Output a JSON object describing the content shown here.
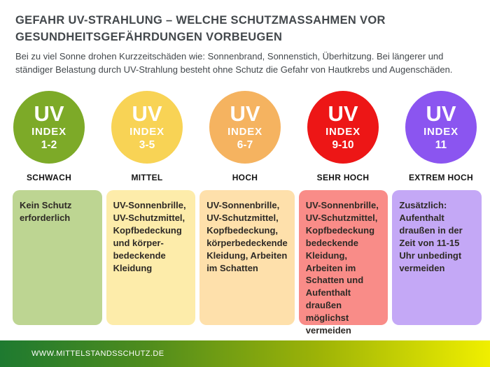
{
  "header": {
    "title_line1": "GEFAHR UV-STRAHLUNG – WELCHE SCHUTZMASSAHMEN VOR",
    "title_line2": "GESUNDHEITSGEFÄHRDUNGEN VORBEUGEN",
    "subtitle": "Bei zu viel Sonne drohen Kurzzeitschäden wie: Sonnenbrand, Sonnenstich, Überhitzung. Bei längerer und ständiger Belastung durch UV-Strahlung besteht ohne Schutz die Gefahr von Hautkrebs und Augenschäden."
  },
  "uv_levels": [
    {
      "uv_label": "UV",
      "index_label": "INDEX",
      "range": "1-2",
      "level": "SCHWACH",
      "advice": "Kein Schutz erforderlich",
      "circle_color": "#7daa28",
      "box_color": "#bdd592"
    },
    {
      "uv_label": "UV",
      "index_label": "INDEX",
      "range": "3-5",
      "level": "MITTEL",
      "advice": "UV-Sonnenbrille, UV-Schutzmittel, Kopfbedeckung und körper-bedeckende Kleidung",
      "circle_color": "#f8d355",
      "box_color": "#fdecaa"
    },
    {
      "uv_label": "UV",
      "index_label": "INDEX",
      "range": "6-7",
      "level": "HOCH",
      "advice": "UV-Sonnenbrille, UV-Schutzmittel, Kopfbedeckung, körperbedeckende Kleidung, Arbeiten im Schatten",
      "circle_color": "#f5b360",
      "box_color": "#fee0ab"
    },
    {
      "uv_label": "UV",
      "index_label": "INDEX",
      "range": "9-10",
      "level": "SEHR HOCH",
      "advice": "UV-Sonnenbrille, UV-Schutzmittel, Kopfbedeckung bedeckende Kleidung, Arbeiten im Schatten und Aufenthalt draußen möglichst vermeiden",
      "circle_color": "#ed1616",
      "box_color": "#f98c88"
    },
    {
      "uv_label": "UV",
      "index_label": "INDEX",
      "range": "11",
      "level": "EXTREM HOCH",
      "advice": "Zusätzlich: Aufenthalt draußen in der Zeit von 11-15 Uhr unbedingt vermeiden",
      "circle_color": "#8b55f0",
      "box_color": "#c4a8f6"
    }
  ],
  "footer": {
    "website": "WWW.MITTELSTANDSSCHUTZ.DE",
    "gradient_left": "#1e7a30",
    "gradient_right": "#f0ef00"
  }
}
